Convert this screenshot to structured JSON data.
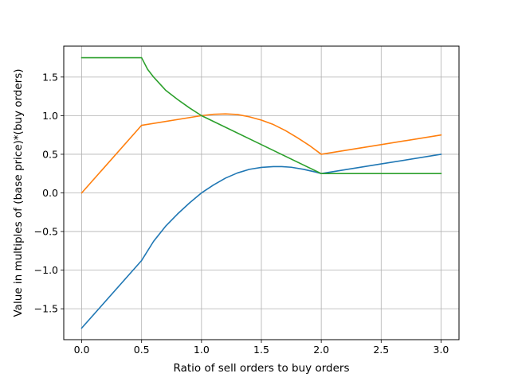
{
  "chart_data": {
    "type": "line",
    "title": "",
    "xlabel": "Ratio of sell orders to buy orders",
    "ylabel": "Value in multiples of (base price)*(buy orders)",
    "xlim": [
      -0.15,
      3.15
    ],
    "ylim": [
      -1.9,
      1.9
    ],
    "x_ticks": [
      0.0,
      0.5,
      1.0,
      1.5,
      2.0,
      2.5,
      3.0
    ],
    "x_tick_labels": [
      "0.0",
      "0.5",
      "1.0",
      "1.5",
      "2.0",
      "2.5",
      "3.0"
    ],
    "y_ticks": [
      -1.5,
      -1.0,
      -0.5,
      0.0,
      0.5,
      1.0,
      1.5
    ],
    "y_tick_labels": [
      "−1.5",
      "−1.0",
      "−0.5",
      "0.0",
      "0.5",
      "1.0",
      "1.5"
    ],
    "grid": true,
    "series": [
      {
        "color": "#1f77b4",
        "x": [
          0.0,
          0.5,
          0.6,
          0.7,
          0.8,
          0.9,
          1.0,
          1.1,
          1.2,
          1.3,
          1.4,
          1.5,
          1.6,
          1.67,
          1.75,
          1.85,
          1.95,
          2.0,
          2.5,
          3.0
        ],
        "y": [
          -1.75,
          -0.875,
          -0.627,
          -0.432,
          -0.273,
          -0.13,
          0.0,
          0.102,
          0.191,
          0.258,
          0.305,
          0.33,
          0.34,
          0.341,
          0.332,
          0.306,
          0.271,
          0.25,
          0.375,
          0.5
        ]
      },
      {
        "color": "#ff7f0e",
        "x": [
          0.0,
          0.5,
          1.0,
          1.1,
          1.2,
          1.3,
          1.4,
          1.5,
          1.6,
          1.7,
          1.8,
          1.9,
          2.0,
          2.5,
          3.0
        ],
        "y": [
          0.0,
          0.875,
          1.0,
          1.018,
          1.023,
          1.015,
          0.985,
          0.942,
          0.885,
          0.808,
          0.715,
          0.615,
          0.5,
          0.625,
          0.75
        ]
      },
      {
        "color": "#2ca02c",
        "x": [
          0.0,
          0.5,
          0.55,
          0.6,
          0.7,
          0.8,
          0.9,
          1.0,
          1.5,
          2.0,
          2.5,
          3.0
        ],
        "y": [
          1.75,
          1.75,
          1.6,
          1.5,
          1.33,
          1.21,
          1.1,
          1.0,
          0.625,
          0.25,
          0.25,
          0.25
        ]
      }
    ]
  }
}
